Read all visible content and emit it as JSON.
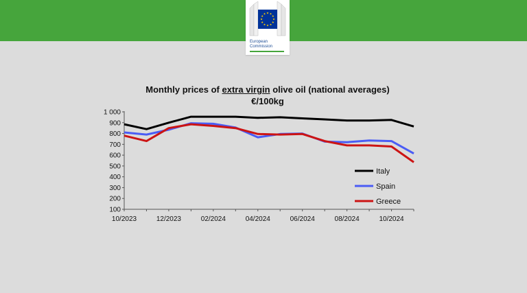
{
  "header": {
    "logo_icon": "eu-flag-icon",
    "logo_line1": "European",
    "logo_line2": "Commission",
    "brand_green": "#46a53c",
    "flag_blue": "#003399",
    "star_yellow": "#ffcc00"
  },
  "chart_data": {
    "type": "line",
    "title_prefix": "Monthly prices of ",
    "title_emphasis": "extra virgin",
    "title_suffix": " olive oil (national averages)",
    "subtitle": "€/100kg",
    "xlabel": "",
    "ylabel": "",
    "x": [
      "10/2023",
      "11/2023",
      "12/2023",
      "01/2024",
      "02/2024",
      "03/2024",
      "04/2024",
      "05/2024",
      "06/2024",
      "07/2024",
      "08/2024",
      "09/2024",
      "10/2024",
      "11/2024"
    ],
    "x_tick_labels": [
      "10/2023",
      "",
      "12/2023",
      "",
      "02/2024",
      "",
      "04/2024",
      "",
      "06/2024",
      "",
      "08/2024",
      "",
      "10/2024",
      ""
    ],
    "ylim": [
      100,
      1000
    ],
    "y_ticks": [
      100,
      200,
      300,
      400,
      500,
      600,
      700,
      800,
      900,
      1000
    ],
    "y_tick_labels": [
      "100",
      "200",
      "300",
      "400",
      "500",
      "600",
      "700",
      "800",
      "900",
      "1 000"
    ],
    "grid": false,
    "legend_position": "right",
    "series": [
      {
        "name": "Italy",
        "color": "#000000",
        "values": [
          885,
          840,
          900,
          955,
          955,
          955,
          945,
          950,
          940,
          930,
          920,
          920,
          925,
          865
        ]
      },
      {
        "name": "Spain",
        "color": "#4a5cf5",
        "values": [
          810,
          790,
          835,
          895,
          890,
          855,
          765,
          795,
          800,
          725,
          720,
          735,
          730,
          615
        ]
      },
      {
        "name": "Greece",
        "color": "#cc1414",
        "values": [
          780,
          730,
          850,
          885,
          870,
          850,
          795,
          790,
          795,
          730,
          690,
          690,
          680,
          535
        ]
      }
    ]
  }
}
